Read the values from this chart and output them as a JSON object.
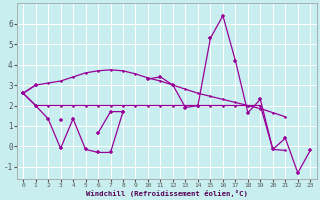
{
  "xlabel": "Windchill (Refroidissement éolien,°C)",
  "background_color": "#c8eef0",
  "grid_color": "#ffffff",
  "line_color": "#990099",
  "x": [
    0,
    1,
    2,
    3,
    4,
    5,
    6,
    7,
    8,
    9,
    10,
    11,
    12,
    13,
    14,
    15,
    16,
    17,
    18,
    19,
    20,
    21,
    22,
    23
  ],
  "s1": [
    2.6,
    3.0,
    3.1,
    3.2,
    3.4,
    3.6,
    3.7,
    3.75,
    3.7,
    3.55,
    3.35,
    3.2,
    3.0,
    2.8,
    2.6,
    2.45,
    2.3,
    2.15,
    2.0,
    1.85,
    1.65,
    1.45,
    null,
    null
  ],
  "s2": [
    2.6,
    2.0,
    2.0,
    2.0,
    2.0,
    2.0,
    2.0,
    2.0,
    2.0,
    2.0,
    2.0,
    2.0,
    2.0,
    2.0,
    2.0,
    2.0,
    2.0,
    2.0,
    2.0,
    2.0,
    -0.15,
    -0.2,
    null,
    null
  ],
  "s3": [
    2.6,
    3.0,
    null,
    1.3,
    null,
    null,
    0.65,
    1.7,
    1.7,
    null,
    3.3,
    3.4,
    3.0,
    1.9,
    2.0,
    5.3,
    6.4,
    4.2,
    1.65,
    2.3,
    -0.15,
    0.4,
    -1.3,
    -0.2
  ],
  "s4": [
    2.6,
    2.0,
    1.35,
    -0.1,
    1.35,
    -0.15,
    -0.3,
    -0.3,
    1.7,
    null,
    null,
    null,
    null,
    null,
    null,
    null,
    null,
    null,
    null,
    null,
    null,
    null,
    null,
    null
  ],
  "ylim": [
    -1.6,
    7.0
  ],
  "yticks": [
    -1,
    0,
    1,
    2,
    3,
    4,
    5,
    6
  ],
  "xticks": [
    0,
    1,
    2,
    3,
    4,
    5,
    6,
    7,
    8,
    9,
    10,
    11,
    12,
    13,
    14,
    15,
    16,
    17,
    18,
    19,
    20,
    21,
    22,
    23
  ]
}
